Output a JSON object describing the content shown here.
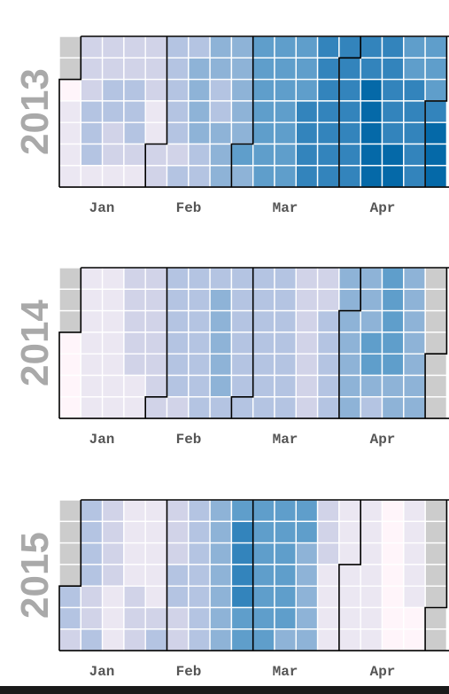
{
  "chart_data": {
    "type": "heatmap",
    "title": "",
    "xlabel": "",
    "ylabel": "",
    "month_labels": [
      "Jan",
      "Feb",
      "Mar",
      "Apr"
    ],
    "missing_color": "#cccccc",
    "border_color": "#000000",
    "color_scale": [
      "#fff5fa",
      "#ebe7f2",
      "#d1d3e8",
      "#b4c4e2",
      "#8eb3d7",
      "#5f9ecb",
      "#3384bc",
      "#0569a8"
    ],
    "value_range": [
      0,
      7
    ],
    "years": [
      {
        "year": "2013",
        "day_offset": 2,
        "values": [
          0,
          1,
          1,
          1,
          1,
          2,
          2,
          2,
          3,
          3,
          3,
          1,
          2,
          2,
          3,
          3,
          2,
          2,
          1,
          2,
          2,
          3,
          3,
          3,
          2,
          1,
          2,
          2,
          2,
          1,
          1,
          2,
          2,
          3,
          3,
          3,
          3,
          3,
          2,
          3,
          3,
          4,
          4,
          4,
          4,
          3,
          3,
          4,
          4,
          3,
          3,
          4,
          4,
          4,
          4,
          4,
          4,
          4,
          4,
          5,
          4,
          5,
          5,
          5,
          5,
          5,
          5,
          5,
          5,
          5,
          5,
          5,
          5,
          5,
          5,
          5,
          5,
          5,
          6,
          6,
          6,
          6,
          6,
          6,
          6,
          6,
          6,
          6,
          6,
          6,
          6,
          6,
          6,
          6,
          6,
          6,
          6,
          6,
          7,
          7,
          7,
          7,
          7,
          6,
          6,
          6,
          6,
          6,
          7,
          7,
          5,
          5,
          6,
          6,
          6,
          6,
          6,
          5,
          5,
          5,
          6,
          7,
          7,
          7
        ]
      },
      {
        "year": "2014",
        "day_offset": 3,
        "values": [
          0,
          0,
          0,
          0,
          1,
          1,
          1,
          1,
          1,
          1,
          1,
          1,
          1,
          1,
          1,
          1,
          1,
          1,
          2,
          2,
          2,
          2,
          2,
          1,
          1,
          2,
          2,
          2,
          2,
          2,
          2,
          2,
          3,
          3,
          3,
          3,
          3,
          3,
          2,
          3,
          3,
          3,
          3,
          3,
          3,
          3,
          3,
          4,
          4,
          4,
          4,
          4,
          3,
          3,
          3,
          3,
          3,
          3,
          3,
          3,
          3,
          3,
          3,
          3,
          3,
          3,
          3,
          3,
          3,
          3,
          3,
          3,
          3,
          3,
          2,
          2,
          2,
          2,
          2,
          2,
          2,
          2,
          2,
          3,
          3,
          3,
          3,
          3,
          4,
          4,
          4,
          4,
          4,
          4,
          4,
          4,
          4,
          4,
          5,
          5,
          4,
          3,
          5,
          5,
          5,
          5,
          5,
          4,
          4,
          4,
          4,
          4,
          4,
          4,
          4,
          4
        ]
      },
      {
        "year": "2015",
        "day_offset": 4,
        "values": [
          3,
          3,
          2,
          3,
          3,
          3,
          3,
          2,
          2,
          3,
          2,
          2,
          2,
          2,
          1,
          1,
          1,
          1,
          1,
          1,
          1,
          2,
          2,
          2,
          1,
          1,
          1,
          1,
          1,
          2,
          3,
          2,
          2,
          2,
          3,
          3,
          2,
          2,
          3,
          3,
          3,
          3,
          3,
          3,
          3,
          4,
          4,
          4,
          4,
          4,
          4,
          4,
          5,
          6,
          6,
          6,
          6,
          5,
          5,
          5,
          5,
          5,
          5,
          5,
          5,
          5,
          5,
          5,
          5,
          5,
          5,
          5,
          4,
          5,
          5,
          4,
          4,
          4,
          4,
          4,
          2,
          2,
          2,
          1,
          1,
          1,
          1,
          1,
          1,
          1,
          1,
          1,
          1,
          1,
          1,
          1,
          1,
          1,
          1,
          1,
          1,
          0,
          0,
          0,
          0,
          0,
          0,
          0,
          1,
          1,
          1,
          1,
          1,
          0,
          0
        ]
      }
    ]
  }
}
